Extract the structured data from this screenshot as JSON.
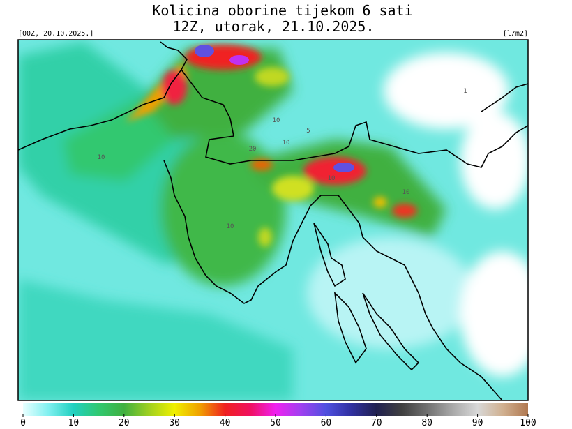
{
  "header": {
    "title_line1": "Kolicina oborine tijekom 6 sati",
    "title_line2": "12Z, utorak, 21.10.2025.",
    "run_label": "[00Z, 20.10.2025.]",
    "unit_label": "[l/m2]"
  },
  "map": {
    "contour_labels": [
      "10",
      "5",
      "10",
      "1",
      "10",
      "20",
      "10",
      "10",
      "10"
    ]
  },
  "colorbar": {
    "range": [
      0,
      100
    ],
    "ticks": [
      0,
      10,
      20,
      30,
      40,
      50,
      60,
      70,
      80,
      90,
      100
    ]
  }
}
